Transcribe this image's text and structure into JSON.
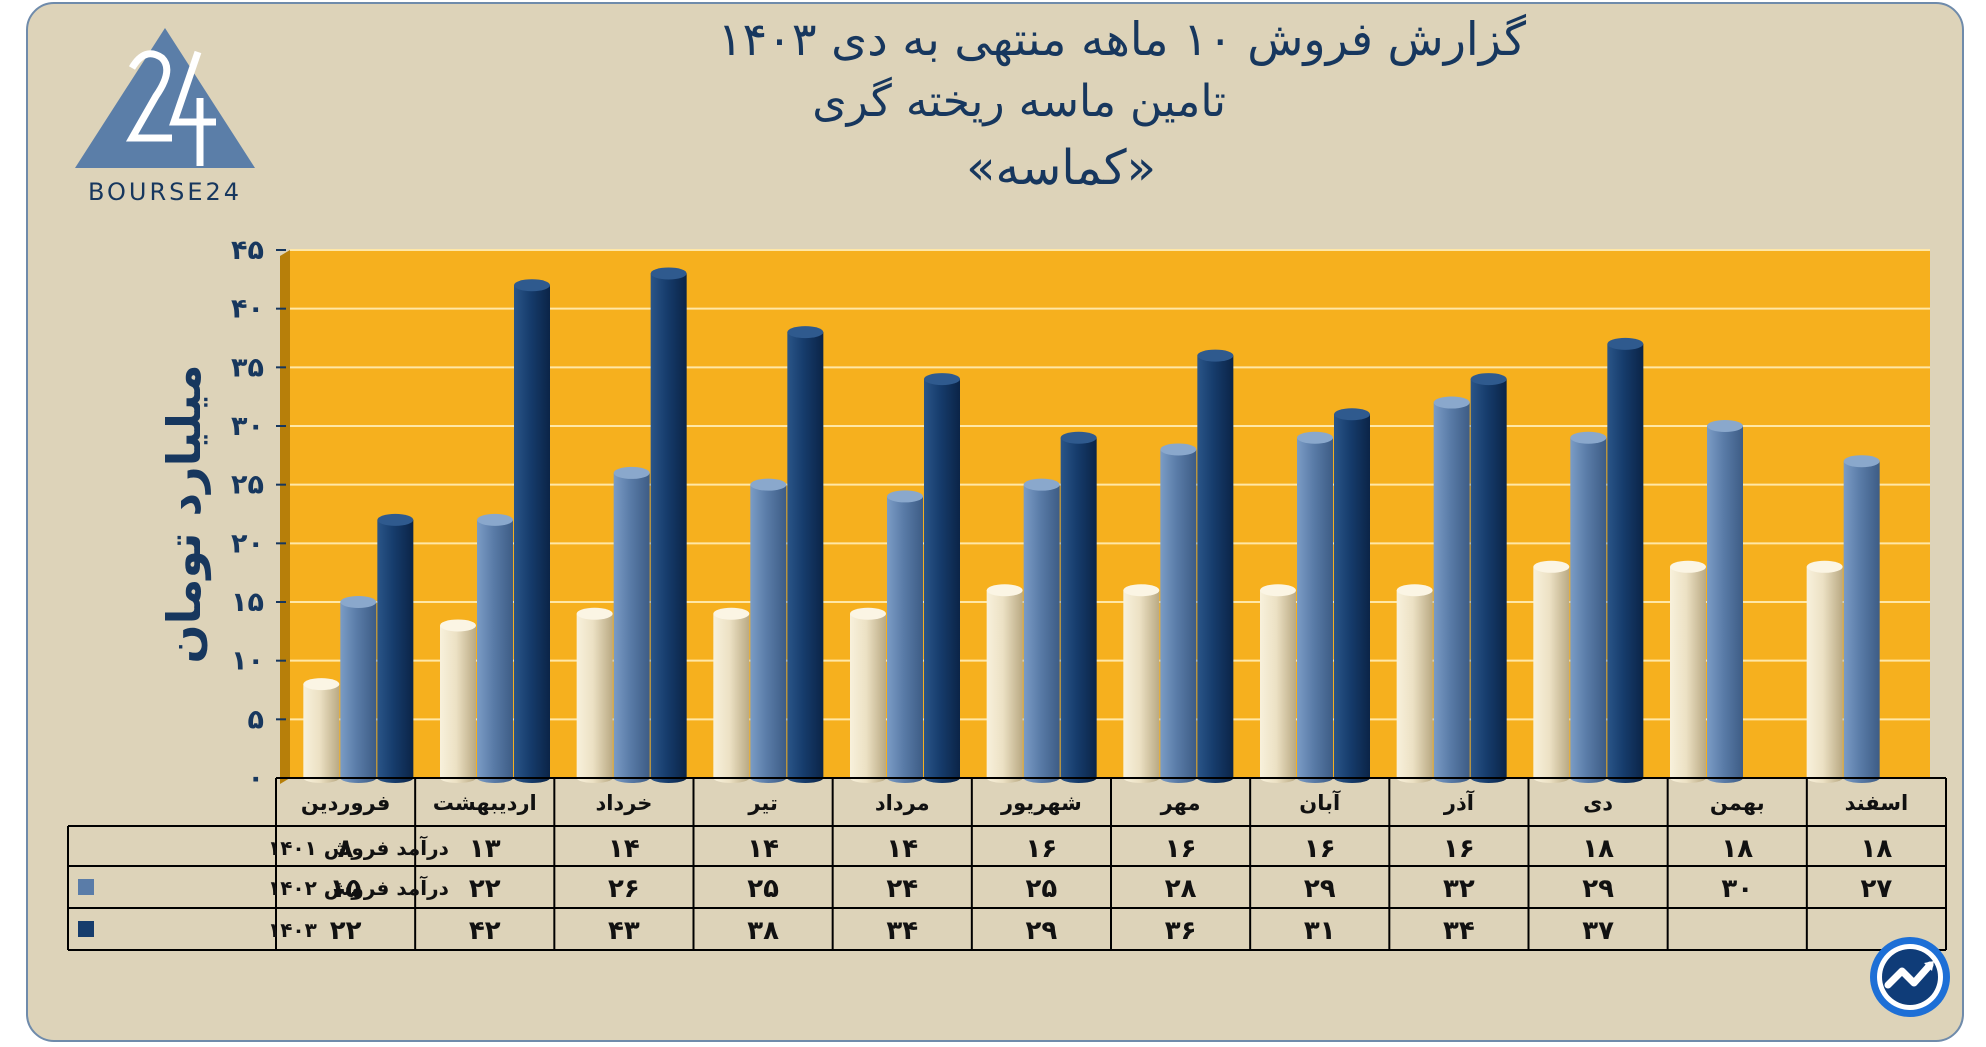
{
  "title": {
    "line1": "گزارش  فروش ۱۰ ماهه منتهی به دی ۱۴۰۳",
    "line2": "تامین ماسه ریخته گری",
    "line3": "«کماسه»"
  },
  "logo": {
    "text": "BOURSE24",
    "numeral": "24"
  },
  "colors": {
    "background": "#ddd3b9",
    "plot_area": "#f6b01e",
    "series_1401": "#ece1c4",
    "series_1402": "#5a7ca8",
    "series_1403": "#163c6c",
    "text": "#17375e"
  },
  "chart_data": {
    "type": "bar",
    "ylabel": "میلیارد تومان",
    "ylim": [
      0,
      45
    ],
    "ytick_values": [
      0,
      5,
      10,
      15,
      20,
      25,
      30,
      35,
      40,
      45
    ],
    "ytick_labels": [
      "۰",
      "۵",
      "۱۰",
      "۱۵",
      "۲۰",
      "۲۵",
      "۳۰",
      "۳۵",
      "۴۰",
      "۴۵"
    ],
    "grid": true,
    "legend": "data-table-left",
    "categories": [
      "فروردین",
      "اردیبهشت",
      "خرداد",
      "تیر",
      "مرداد",
      "شهریور",
      "مهر",
      "آبان",
      "آذر",
      "دی",
      "بهمن",
      "اسفند"
    ],
    "series": [
      {
        "name": "درآمد فروش ۱۴۰۱",
        "values": [
          8,
          13,
          14,
          14,
          14,
          16,
          16,
          16,
          16,
          18,
          18,
          18
        ],
        "labels": [
          "۸",
          "۱۳",
          "۱۴",
          "۱۴",
          "۱۴",
          "۱۶",
          "۱۶",
          "۱۶",
          "۱۶",
          "۱۸",
          "۱۸",
          "۱۸"
        ]
      },
      {
        "name": "درآمد فروش ۱۴۰۲",
        "values": [
          15,
          22,
          26,
          25,
          24,
          25,
          28,
          29,
          32,
          29,
          30,
          27
        ],
        "labels": [
          "۱۵",
          "۲۲",
          "۲۶",
          "۲۵",
          "۲۴",
          "۲۵",
          "۲۸",
          "۲۹",
          "۳۲",
          "۲۹",
          "۳۰",
          "۲۷"
        ]
      },
      {
        "name": "۱۴۰۳",
        "values": [
          22,
          42,
          43,
          38,
          34,
          29,
          36,
          31,
          34,
          37,
          null,
          null
        ],
        "labels": [
          "۲۲",
          "۴۲",
          "۴۳",
          "۳۸",
          "۳۴",
          "۲۹",
          "۳۶",
          "۳۱",
          "۳۴",
          "۳۷",
          "",
          ""
        ]
      }
    ]
  }
}
